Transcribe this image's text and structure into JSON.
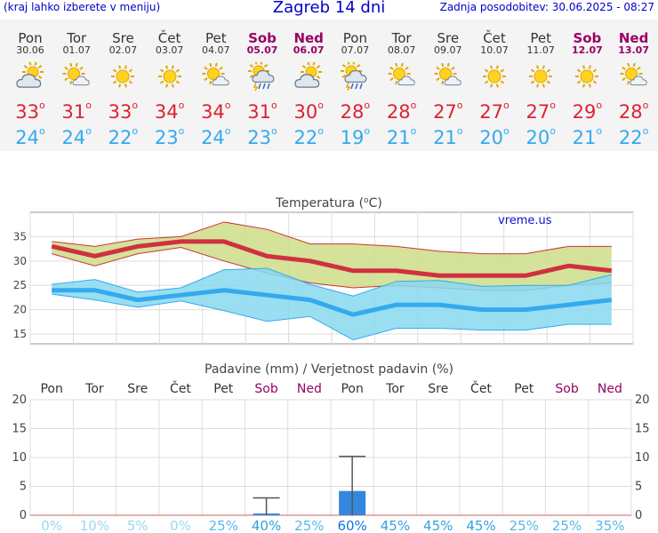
{
  "header": {
    "hint": "(kraj lahko izberete v meniju)",
    "title": "Zagreb 14 dni",
    "update": "Zadnja posodobitev: 30.06.2025 - 08:27"
  },
  "days": [
    {
      "name": "Pon",
      "date": "30.06",
      "weekend": false,
      "icon": "sun-cloud-icon",
      "tmax": "33",
      "tmin": "24"
    },
    {
      "name": "Tor",
      "date": "01.07",
      "weekend": false,
      "icon": "sun-small-cloud-icon",
      "tmax": "31",
      "tmin": "24"
    },
    {
      "name": "Sre",
      "date": "02.07",
      "weekend": false,
      "icon": "sun-icon",
      "tmax": "33",
      "tmin": "22"
    },
    {
      "name": "Čet",
      "date": "03.07",
      "weekend": false,
      "icon": "sun-icon",
      "tmax": "34",
      "tmin": "23"
    },
    {
      "name": "Pet",
      "date": "04.07",
      "weekend": false,
      "icon": "sun-small-cloud-icon",
      "tmax": "34",
      "tmin": "24"
    },
    {
      "name": "Sob",
      "date": "05.07",
      "weekend": true,
      "icon": "thunderstorm-icon",
      "tmax": "31",
      "tmin": "23"
    },
    {
      "name": "Ned",
      "date": "06.07",
      "weekend": true,
      "icon": "sun-cloud-icon",
      "tmax": "30",
      "tmin": "22"
    },
    {
      "name": "Pon",
      "date": "07.07",
      "weekend": false,
      "icon": "thunderstorm-icon",
      "tmax": "28",
      "tmin": "19"
    },
    {
      "name": "Tor",
      "date": "08.07",
      "weekend": false,
      "icon": "sun-small-cloud-icon",
      "tmax": "28",
      "tmin": "21"
    },
    {
      "name": "Sre",
      "date": "09.07",
      "weekend": false,
      "icon": "sun-small-cloud-icon",
      "tmax": "27",
      "tmin": "21"
    },
    {
      "name": "Čet",
      "date": "10.07",
      "weekend": false,
      "icon": "sun-icon",
      "tmax": "27",
      "tmin": "20"
    },
    {
      "name": "Pet",
      "date": "11.07",
      "weekend": false,
      "icon": "sun-icon",
      "tmax": "27",
      "tmin": "20"
    },
    {
      "name": "Sob",
      "date": "12.07",
      "weekend": true,
      "icon": "sun-icon",
      "tmax": "29",
      "tmin": "21"
    },
    {
      "name": "Ned",
      "date": "13.07",
      "weekend": true,
      "icon": "sun-small-cloud-icon",
      "tmax": "28",
      "tmin": "22"
    }
  ],
  "degree_symbol": "o",
  "chart_data": [
    {
      "type": "line",
      "title": "Temperatura (oC)",
      "watermark": "vreme.us",
      "ylim": [
        13,
        40
      ],
      "yticks": [
        15,
        20,
        25,
        30,
        35
      ],
      "x": [
        "30.06",
        "01.07",
        "02.07",
        "03.07",
        "04.07",
        "05.07",
        "06.07",
        "07.07",
        "08.07",
        "09.07",
        "10.07",
        "11.07",
        "12.07",
        "13.07"
      ],
      "series": [
        {
          "values": [
            33,
            31,
            33,
            34,
            34,
            31,
            30,
            28,
            28,
            27,
            27,
            27,
            29,
            28
          ],
          "color": "#d03040"
        },
        {
          "values": [
            24,
            24,
            22,
            23,
            24,
            23,
            22,
            19,
            21,
            21,
            20,
            20,
            21,
            22
          ],
          "color": "#33aaee"
        }
      ],
      "bands": [
        {
          "kind": "max-range",
          "color": "#ccdd88",
          "edge": "#cc3333",
          "upper": [
            34,
            33,
            34.5,
            35,
            38,
            36.5,
            33.5,
            33.5,
            33,
            32,
            31.5,
            31.5,
            33,
            33
          ],
          "lower": [
            31.5,
            29,
            31.5,
            32.8,
            30,
            27.5,
            25.5,
            24.5,
            25,
            24.5,
            24,
            24,
            25,
            25.5
          ]
        },
        {
          "kind": "min-range",
          "color": "#88d8ee",
          "edge": "#33aaee",
          "upper": [
            25.2,
            26.2,
            23.6,
            24.5,
            28.2,
            28.5,
            25.2,
            22.8,
            25.8,
            26,
            24.8,
            25,
            25,
            27.2
          ],
          "lower": [
            23.2,
            22,
            20.5,
            21.8,
            19.8,
            17.6,
            18.6,
            13.8,
            16.2,
            16.2,
            15.8,
            15.8,
            17,
            17
          ]
        }
      ]
    },
    {
      "type": "bar",
      "title": "Padavine (mm) / Verjetnost padavin (%)",
      "ylim": [
        0,
        20
      ],
      "yticks": [
        0,
        5,
        10,
        15,
        20
      ],
      "categories": [
        "Pon",
        "Tor",
        "Sre",
        "Čet",
        "Pet",
        "Sob",
        "Ned",
        "Pon",
        "Tor",
        "Sre",
        "Čet",
        "Pet",
        "Sob",
        "Ned"
      ],
      "weekend": [
        false,
        false,
        false,
        false,
        false,
        true,
        true,
        false,
        false,
        false,
        false,
        false,
        true,
        true
      ],
      "values": [
        0,
        0,
        0,
        0,
        0,
        0.3,
        0,
        4.2,
        0,
        0,
        0,
        0,
        0,
        0
      ],
      "error_high": [
        null,
        null,
        null,
        null,
        null,
        3,
        null,
        10.2,
        null,
        null,
        null,
        null,
        null,
        null
      ],
      "probability_pct": [
        0,
        10,
        5,
        0,
        25,
        40,
        25,
        60,
        45,
        45,
        45,
        25,
        25,
        35
      ],
      "probability_labels": [
        "0%",
        "10%",
        "5%",
        "0%",
        "25%",
        "40%",
        "25%",
        "60%",
        "45%",
        "45%",
        "45%",
        "25%",
        "25%",
        "35%"
      ],
      "bar_color": "#3388dd"
    }
  ]
}
